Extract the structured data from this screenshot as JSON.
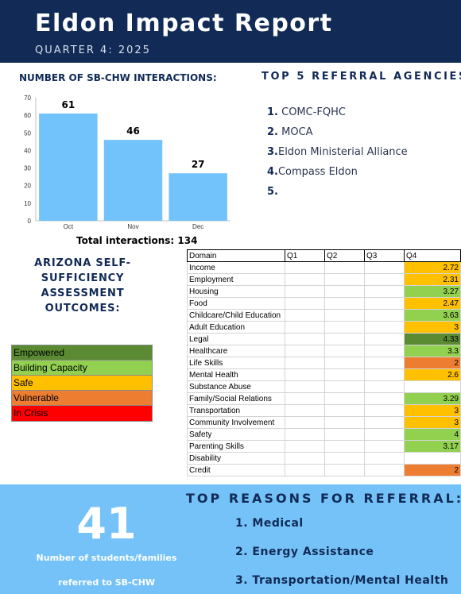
{
  "header": {
    "title": "Eldon Impact Report",
    "subtitle": "QUARTER 4: 2025"
  },
  "chart_data": {
    "type": "bar",
    "title": "NUMBER OF SB-CHW INTERACTIONS:",
    "categories": [
      "Oct",
      "Nov",
      "Dec"
    ],
    "values": [
      61,
      46,
      27
    ],
    "ylim": [
      0,
      70
    ],
    "yticks": [
      0,
      10,
      20,
      30,
      40,
      50,
      60,
      70
    ],
    "color": "#72c3fb",
    "grid": false,
    "total_label": "Total interactions: 134"
  },
  "agencies": {
    "title": "TOP 5 REFERRAL AGENCIES:",
    "items": [
      {
        "num": "1.",
        "name": " COMC-FQHC"
      },
      {
        "num": "2.",
        "name": " MOCA"
      },
      {
        "num": "3.",
        "name": "Eldon Ministerial Alliance"
      },
      {
        "num": "4.",
        "name": "Compass Eldon"
      },
      {
        "num": "5.",
        "name": ""
      }
    ]
  },
  "assessment": {
    "title": "ARIZONA SELF-SUFFICIENCY ASSESSMENT OUTCOMES:",
    "legend": [
      {
        "label": "Empowered",
        "color": "#5a8a32"
      },
      {
        "label": "Building Capacity",
        "color": "#92d050"
      },
      {
        "label": "Safe",
        "color": "#ffc000"
      },
      {
        "label": "Vulnerable",
        "color": "#ed7d31"
      },
      {
        "label": "In Crisis",
        "color": "#ff0000"
      }
    ]
  },
  "table": {
    "headers": [
      "Domain",
      "Q1",
      "Q2",
      "Q3",
      "Q4"
    ],
    "rows": [
      {
        "domain": "Income",
        "q4": "2.72",
        "color": "#ffc000"
      },
      {
        "domain": "Employment",
        "q4": "2.31",
        "color": "#ffc000"
      },
      {
        "domain": "Housing",
        "q4": "3.27",
        "color": "#92d050"
      },
      {
        "domain": "Food",
        "q4": "2.47",
        "color": "#ffc000"
      },
      {
        "domain": "Childcare/Child Education",
        "q4": "3.63",
        "color": "#92d050"
      },
      {
        "domain": "Adult Education",
        "q4": "3",
        "color": "#ffc000"
      },
      {
        "domain": "Legal",
        "q4": "4.33",
        "color": "#5a8a32"
      },
      {
        "domain": "Healthcare",
        "q4": "3.3",
        "color": "#92d050"
      },
      {
        "domain": "Life Skills",
        "q4": "2",
        "color": "#ed7d31"
      },
      {
        "domain": "Mental Health",
        "q4": "2.6",
        "color": "#ffc000"
      },
      {
        "domain": "Substance Abuse",
        "q4": "",
        "color": ""
      },
      {
        "domain": "Family/Social Relations",
        "q4": "3.29",
        "color": "#92d050"
      },
      {
        "domain": "Transportation",
        "q4": "3",
        "color": "#ffc000"
      },
      {
        "domain": "Community Involvement",
        "q4": "3",
        "color": "#ffc000"
      },
      {
        "domain": "Safety",
        "q4": "4",
        "color": "#92d050"
      },
      {
        "domain": "Parenting Skills",
        "q4": "3.17",
        "color": "#92d050"
      },
      {
        "domain": "Disability",
        "q4": "",
        "color": ""
      },
      {
        "domain": "Credit",
        "q4": "2",
        "color": "#ed7d31"
      }
    ]
  },
  "referred": {
    "number": "41",
    "caption_line1": "Number of students/families",
    "caption_line2": "referred to SB-CHW"
  },
  "reasons": {
    "title": "TOP REASONS FOR REFERRAL:",
    "items": [
      "1. Medical",
      "2. Energy Assistance",
      "3. Transportation/Mental Health"
    ]
  }
}
